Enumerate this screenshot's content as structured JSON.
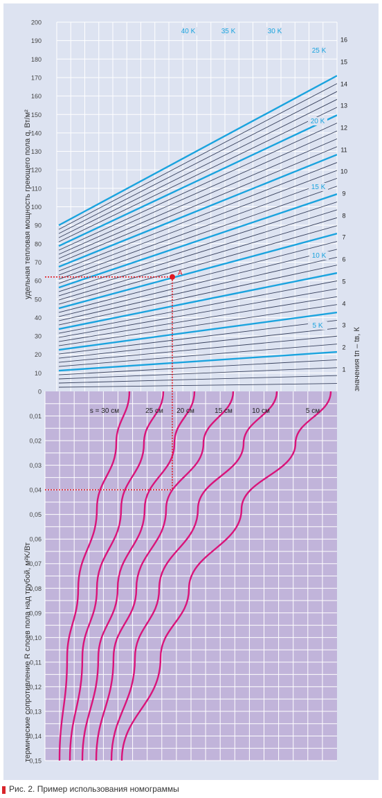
{
  "caption": "Рис. 2. Пример использования номограммы",
  "colors": {
    "frame_bg": "#dde3f1",
    "top_plot_bg": "#dde3f1",
    "bottom_plot_bg": "#c1b4da",
    "grid": "#ffffff",
    "line_dark": "#37405c",
    "line_blue": "#1aa3de",
    "curve_magenta": "#d9147a",
    "marker_red": "#e11921"
  },
  "chart_data": [
    {
      "type": "line",
      "panel": "top",
      "ylabel": "удельная тепловая мощность греющего пола q, Вт/м²",
      "ylim": [
        0,
        200
      ],
      "yticks": [
        "0",
        "10",
        "20",
        "30",
        "40",
        "50",
        "60",
        "70",
        "80",
        "90",
        "100",
        "110",
        "120",
        "130",
        "140",
        "150",
        "160",
        "170",
        "180",
        "190",
        "200"
      ],
      "right_axis_label": "значения tп – tв, К",
      "right_ticks": [
        "1",
        "2",
        "3",
        "4",
        "5",
        "6",
        "7",
        "8",
        "9",
        "10",
        "11",
        "12",
        "13",
        "14",
        "15",
        "16"
      ],
      "series_start_q_per_K": 2.25,
      "highlight_labels": [
        "5 K",
        "10 K",
        "15 K",
        "20 K",
        "25 K",
        "30 K",
        "35 K",
        "40 K"
      ],
      "series_K": [
        1,
        2,
        3,
        4,
        5,
        6,
        7,
        8,
        9,
        10,
        11,
        12,
        13,
        14,
        15,
        16,
        17,
        18,
        19,
        20,
        21,
        22,
        23,
        24,
        25,
        26,
        27,
        28,
        29,
        30,
        31,
        32,
        33,
        34,
        35,
        36,
        37,
        38,
        39,
        40
      ],
      "point_label": "A",
      "point_q": 62
    },
    {
      "type": "line",
      "panel": "bottom",
      "ylabel": "термические сопротивление R слоев пола над трубой, м²K/Вт",
      "ylim": [
        0,
        0.15
      ],
      "yticks": [
        "0,01",
        "0,02",
        "0,03",
        "0,04",
        "0,05",
        "0,06",
        "0,07",
        "0,08",
        "0,09",
        "0,10",
        "0,11",
        "0,12",
        "0,13",
        "0,14",
        "0,15"
      ],
      "curve_labels": [
        "s = 30 см",
        "25 см",
        "20 см",
        "15 см",
        "10 см",
        "5 см"
      ],
      "point_R": 0.04
    }
  ]
}
